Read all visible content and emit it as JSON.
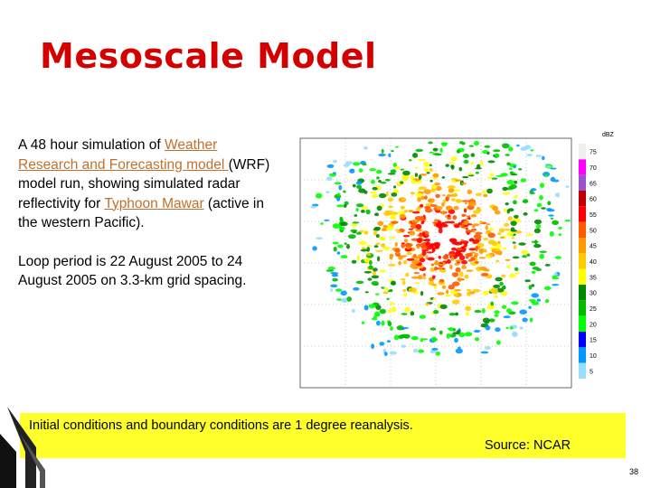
{
  "title": "Mesoscale Model",
  "paragraphs": [
    {
      "parts": [
        {
          "text": "A 48 hour simulation of "
        },
        {
          "text": "Weather Research and Forecasting model ",
          "link": true
        },
        {
          "text": "(WRF) model run, showing simulated radar reflectivity for "
        },
        {
          "text": "Typhoon Mawar",
          "link": true
        },
        {
          "text": " (active in the western Pacific)."
        }
      ]
    },
    {
      "parts": [
        {
          "text": "Loop period is 22 August 2005 to 24 August 2005 on 3.3-km grid spacing."
        }
      ]
    }
  ],
  "radar": {
    "unit": "dBZ",
    "scale": [
      {
        "value": 75,
        "color": "#f0f0f0"
      },
      {
        "value": 70,
        "color": "#ff00ff"
      },
      {
        "value": 65,
        "color": "#9955cc"
      },
      {
        "value": 60,
        "color": "#c00000"
      },
      {
        "value": 55,
        "color": "#ff0000"
      },
      {
        "value": 50,
        "color": "#ff5a00"
      },
      {
        "value": 45,
        "color": "#ff9900"
      },
      {
        "value": 40,
        "color": "#ffcc00"
      },
      {
        "value": 35,
        "color": "#ffff00"
      },
      {
        "value": 30,
        "color": "#008800"
      },
      {
        "value": 25,
        "color": "#00bb00"
      },
      {
        "value": 20,
        "color": "#00ff00"
      },
      {
        "value": 15,
        "color": "#0000ff"
      },
      {
        "value": 10,
        "color": "#0099ff"
      },
      {
        "value": 5,
        "color": "#99ddff"
      }
    ]
  },
  "note": "Initial conditions and boundary conditions are 1 degree reanalysis.",
  "source": "Source: NCAR",
  "page_number": "38"
}
